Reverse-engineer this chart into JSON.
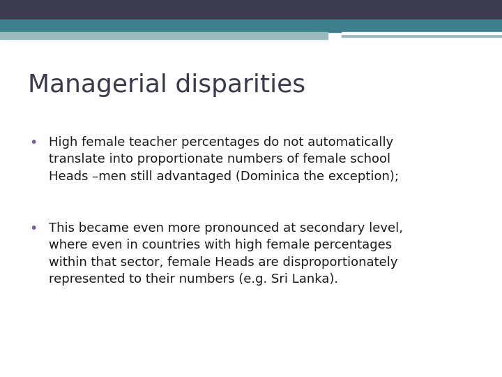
{
  "title": "Managerial disparities",
  "title_color": "#3a3a4a",
  "title_fontsize": 26,
  "background_color": "#ffffff",
  "bullet_color": "#7b5ea7",
  "bullet_fontsize": 13,
  "text_color": "#1a1a1a",
  "bullets": [
    "High female teacher percentages do not automatically\ntranslate into proportionate numbers of female school\nHeads –men still advantaged (Dominica the exception);",
    "This became even more pronounced at secondary level,\nwhere even in countries with high female percentages\nwithin that sector, female Heads are disproportionately\nrepresented to their numbers (e.g. Sri Lanka)."
  ],
  "header_bar_color": "#3d3d4f",
  "teal_bar_color": "#3d7f8a",
  "light_teal_color": "#9ab8be",
  "figwidth": 7.2,
  "figheight": 5.4,
  "dpi": 100
}
